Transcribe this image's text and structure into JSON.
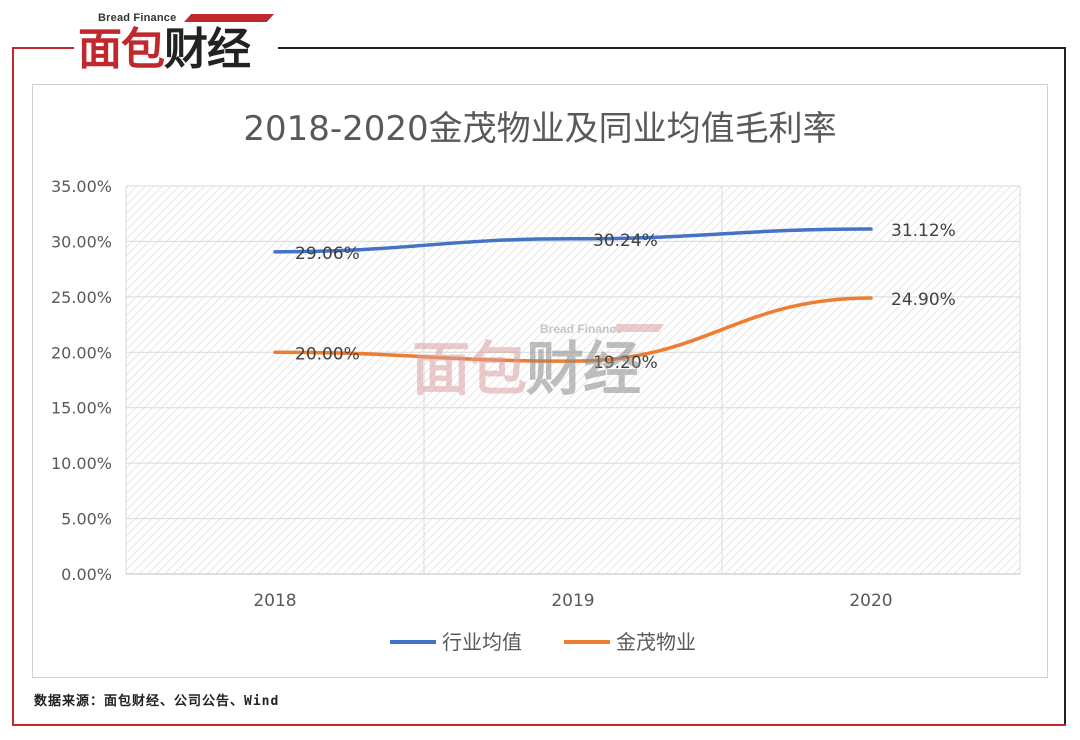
{
  "logo": {
    "en": "Bread Finance",
    "cn_red": "面包",
    "cn_black": "财经"
  },
  "watermark": {
    "en": "Bread Finance",
    "cn_red": "面包",
    "cn_black": "财经"
  },
  "source": "数据来源：面包财经、公司公告、Wind",
  "chart_data": {
    "type": "line",
    "title": "2018-2020金茂物业及同业均值毛利率",
    "categories": [
      "2018",
      "2019",
      "2020"
    ],
    "series": [
      {
        "name": "行业均值",
        "values": [
          29.06,
          30.24,
          31.12
        ],
        "labels": [
          "29.06%",
          "30.24%",
          "31.12%"
        ],
        "color": "#4472c4"
      },
      {
        "name": "金茂物业",
        "values": [
          20.0,
          19.2,
          24.9
        ],
        "labels": [
          "20.00%",
          "19.20%",
          "24.90%"
        ],
        "color": "#ed7d31"
      }
    ],
    "ylim": [
      0,
      35
    ],
    "yticks": [
      "0.00%",
      "5.00%",
      "10.00%",
      "15.00%",
      "20.00%",
      "25.00%",
      "30.00%",
      "35.00%"
    ],
    "grid": true,
    "legend": "bottom"
  }
}
